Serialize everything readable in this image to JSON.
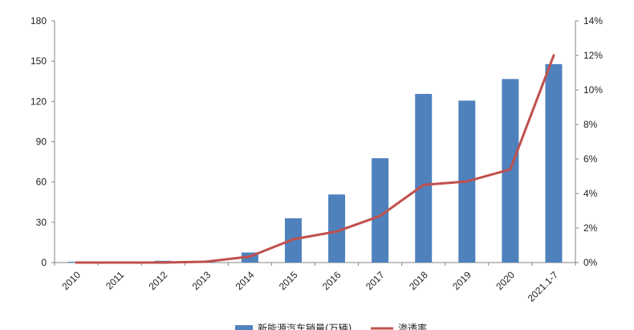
{
  "chart_data": {
    "type": "bar",
    "categories": [
      "2010",
      "2011",
      "2012",
      "2013",
      "2014",
      "2015",
      "2016",
      "2017",
      "2018",
      "2019",
      "2020",
      "2021.1-7"
    ],
    "series": [
      {
        "name": "新能源汽车销量(万辆)",
        "type": "bar",
        "axis": "left",
        "color": "#4f81bd",
        "values": [
          0.1,
          0.1,
          1.3,
          0.2,
          7.5,
          33.0,
          50.7,
          77.7,
          125.6,
          120.6,
          136.7,
          147.8
        ]
      },
      {
        "name": "渗透率",
        "type": "line",
        "axis": "right",
        "color": "#c0504d",
        "values": [
          0.0,
          0.0,
          0.0,
          0.05,
          0.35,
          1.35,
          1.8,
          2.7,
          4.5,
          4.7,
          5.4,
          12.0
        ]
      }
    ],
    "y_left": {
      "min": 0,
      "max": 180,
      "ticks": [
        "0",
        "30",
        "60",
        "90",
        "120",
        "150",
        "180"
      ]
    },
    "y_right": {
      "min": 0,
      "max": 14,
      "ticks": [
        "0%",
        "2%",
        "4%",
        "6%",
        "8%",
        "10%",
        "12%",
        "14%"
      ]
    },
    "grid": false,
    "legend_position": "bottom"
  }
}
